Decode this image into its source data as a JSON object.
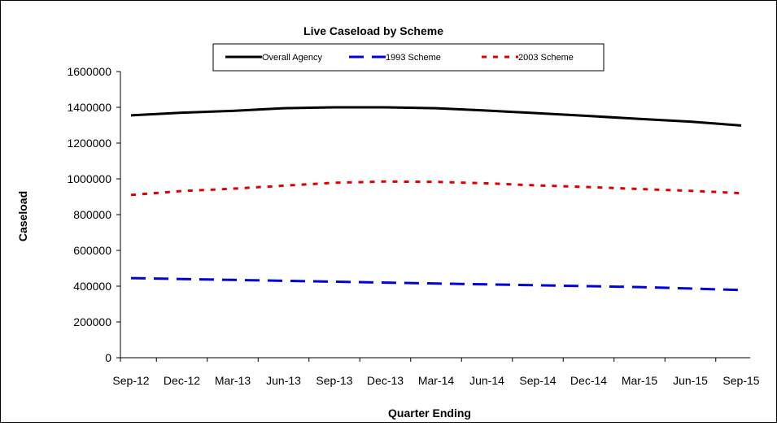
{
  "colors": {
    "overall": "#000000",
    "scheme_1993": "#0000dd",
    "scheme_2003": "#dd0000",
    "axis": "#000000",
    "background": "#ffffff"
  },
  "chart_data": {
    "type": "line",
    "title": "Live Caseload by Scheme",
    "xlabel": "Quarter Ending",
    "ylabel": "Caseload",
    "categories": [
      "Sep-12",
      "Dec-12",
      "Mar-13",
      "Jun-13",
      "Sep-13",
      "Dec-13",
      "Mar-14",
      "Jun-14",
      "Sep-14",
      "Dec-14",
      "Mar-15",
      "Jun-15",
      "Sep-15"
    ],
    "ylim": [
      0,
      1600000
    ],
    "yticks": [
      "0",
      "200000",
      "400000",
      "600000",
      "800000",
      "1000000",
      "1200000",
      "1400000",
      "1600000"
    ],
    "grid": false,
    "legend_position": "top-center",
    "series": [
      {
        "name": "Overall Agency",
        "color_key": "overall",
        "style": "solid",
        "values": [
          1355000,
          1370000,
          1380000,
          1395000,
          1400000,
          1400000,
          1395000,
          1382000,
          1367000,
          1352000,
          1335000,
          1320000,
          1298000
        ]
      },
      {
        "name": "1993 Scheme",
        "color_key": "scheme_1993",
        "style": "dashed",
        "values": [
          445000,
          440000,
          435000,
          430000,
          425000,
          420000,
          415000,
          410000,
          405000,
          400000,
          395000,
          387000,
          378000
        ]
      },
      {
        "name": "2003 Scheme",
        "color_key": "scheme_2003",
        "style": "dotted",
        "values": [
          910000,
          932000,
          945000,
          962000,
          978000,
          985000,
          983000,
          975000,
          963000,
          954000,
          943000,
          933000,
          920000
        ]
      }
    ]
  }
}
